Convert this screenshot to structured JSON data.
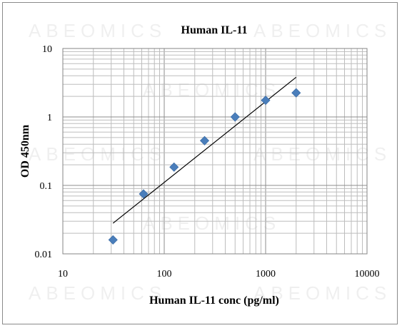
{
  "watermark": "ABEOMICS",
  "chart_data": {
    "type": "scatter",
    "title": "Human IL-11",
    "xlabel": "Human IL-11 conc (pg/ml)",
    "ylabel": "OD 450nm",
    "xscale": "log",
    "yscale": "log",
    "xlim": [
      10,
      10000
    ],
    "ylim": [
      0.01,
      10
    ],
    "x_ticks": [
      "10",
      "100",
      "1000",
      "10000"
    ],
    "y_ticks": [
      "0.01",
      "0.1",
      "1",
      "10"
    ],
    "grid": true,
    "legend": "none",
    "marker": "diamond",
    "marker_color": "#4a7ebb",
    "series": [
      {
        "x": [
          31.25,
          62.5,
          125,
          250,
          500,
          1000,
          2000
        ],
        "y": [
          0.016,
          0.075,
          0.185,
          0.45,
          1.0,
          1.75,
          2.25
        ]
      }
    ],
    "trendline": {
      "type": "power",
      "x": [
        31.25,
        2000
      ],
      "y": [
        0.028,
        3.8
      ]
    }
  }
}
